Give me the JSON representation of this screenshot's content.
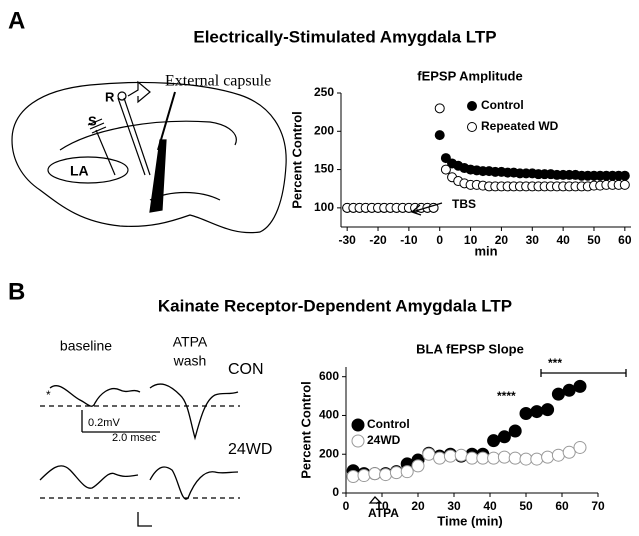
{
  "panels": [
    {
      "label": "A",
      "title": "Electrically-Stimulated Amygdala LTP"
    },
    {
      "label": "B",
      "title": "Kainate Receptor-Dependent Amygdala LTP"
    }
  ],
  "diagram": {
    "recording": "R",
    "stimulating": "S",
    "region": "LA",
    "capsule": "External capsule"
  },
  "traces": {
    "baseline": "baseline",
    "wash": [
      "ATPA",
      "wash"
    ],
    "control": "CON",
    "treated": "24WD",
    "voltage": "0.2mV",
    "time": "2.0 msec",
    "marker": "*"
  },
  "chart_data": [
    {
      "type": "scatter",
      "title": "fEPSP Amplitude",
      "x_label": "min",
      "y_label": "Percent Control",
      "x": [
        -30,
        -28,
        -26,
        -24,
        -22,
        -20,
        -18,
        -16,
        -14,
        -12,
        -10,
        -8,
        -6,
        -4,
        -2,
        0,
        2,
        4,
        6,
        8,
        10,
        12,
        14,
        16,
        18,
        20,
        22,
        24,
        26,
        28,
        30,
        32,
        34,
        36,
        38,
        40,
        42,
        44,
        46,
        48,
        50,
        52,
        54,
        56,
        58,
        60
      ],
      "xlim": [
        -32,
        62
      ],
      "xticks": [
        -30,
        -20,
        -10,
        0,
        10,
        20,
        30,
        40,
        50,
        60
      ],
      "ylim": [
        75,
        250
      ],
      "yticks": [
        100,
        150,
        200,
        250
      ],
      "series": [
        {
          "name": "Control",
          "color": "#000000",
          "fill": "#000000",
          "values": [
            100,
            100,
            100,
            100,
            100,
            100,
            100,
            100,
            100,
            100,
            100,
            100,
            100,
            100,
            100,
            195,
            165,
            158,
            155,
            152,
            150,
            149,
            148,
            148,
            147,
            147,
            146,
            146,
            145,
            145,
            145,
            144,
            144,
            144,
            143,
            143,
            143,
            143,
            142,
            142,
            142,
            142,
            142,
            142,
            142,
            142
          ]
        },
        {
          "name": "Repeated WD",
          "color": "#000000",
          "fill": "#ffffff",
          "values": [
            100,
            100,
            100,
            100,
            100,
            100,
            100,
            100,
            100,
            100,
            100,
            100,
            100,
            100,
            100,
            230,
            150,
            140,
            135,
            132,
            130,
            130,
            129,
            128,
            128,
            128,
            128,
            128,
            128,
            128,
            128,
            128,
            128,
            128,
            128,
            128,
            128,
            128,
            128,
            128,
            129,
            129,
            130,
            130,
            130,
            130
          ]
        }
      ],
      "annotations": [
        "TBS"
      ]
    },
    {
      "type": "scatter",
      "title": "BLA fEPSP Slope",
      "x_label": "Time (min)",
      "y_label": "Percent Control",
      "x": [
        2,
        5,
        8,
        11,
        14,
        17,
        20,
        23,
        26,
        29,
        32,
        35,
        38,
        41,
        44,
        47,
        50,
        53,
        56,
        59,
        62,
        65
      ],
      "xlim": [
        0,
        70
      ],
      "xticks": [
        0,
        10,
        20,
        30,
        40,
        50,
        60,
        70
      ],
      "ylim": [
        0,
        650
      ],
      "yticks": [
        0,
        200,
        400,
        600
      ],
      "series": [
        {
          "name": "Control",
          "color": "#000000",
          "fill": "#000000",
          "values": [
            115,
            100,
            100,
            100,
            110,
            150,
            170,
            205,
            190,
            200,
            190,
            200,
            200,
            270,
            290,
            320,
            410,
            420,
            430,
            510,
            530,
            550
          ]
        },
        {
          "name": "24WD",
          "color": "#999999",
          "fill": "#ffffff",
          "values": [
            85,
            90,
            100,
            95,
            105,
            110,
            140,
            200,
            180,
            190,
            195,
            180,
            180,
            180,
            185,
            180,
            175,
            175,
            185,
            195,
            210,
            235
          ]
        }
      ],
      "annotations": [
        "****",
        "***",
        "ATPA"
      ]
    }
  ]
}
